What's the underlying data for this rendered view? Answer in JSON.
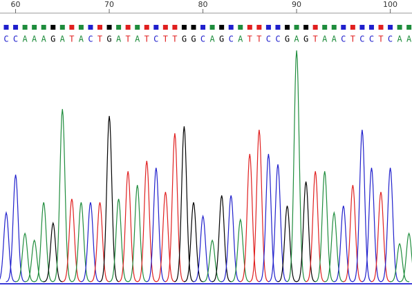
{
  "chart_data": {
    "type": "chromatogram",
    "xticks": [
      60,
      70,
      80,
      90,
      100
    ],
    "first_position": 59,
    "bases": [
      "C",
      "C",
      "A",
      "A",
      "A",
      "G",
      "A",
      "T",
      "A",
      "C",
      "T",
      "G",
      "A",
      "T",
      "A",
      "T",
      "C",
      "T",
      "T",
      "G",
      "G",
      "C",
      "A",
      "G",
      "C",
      "A",
      "T",
      "T",
      "C",
      "C",
      "G",
      "A",
      "G",
      "T",
      "A",
      "A",
      "C",
      "T",
      "C",
      "C",
      "T",
      "C",
      "A",
      "A"
    ],
    "values": [
      100,
      155,
      70,
      60,
      115,
      85,
      250,
      120,
      115,
      115,
      115,
      240,
      120,
      160,
      140,
      175,
      165,
      130,
      215,
      225,
      115,
      95,
      60,
      125,
      125,
      90,
      185,
      220,
      185,
      170,
      110,
      335,
      145,
      160,
      160,
      100,
      110,
      140,
      220,
      165,
      130,
      165,
      55,
      70
    ],
    "ylim": [
      0,
      340
    ],
    "base_colors": {
      "A": "#1e8c3c",
      "C": "#1f1fcc",
      "G": "#000000",
      "T": "#e01f1f"
    }
  }
}
